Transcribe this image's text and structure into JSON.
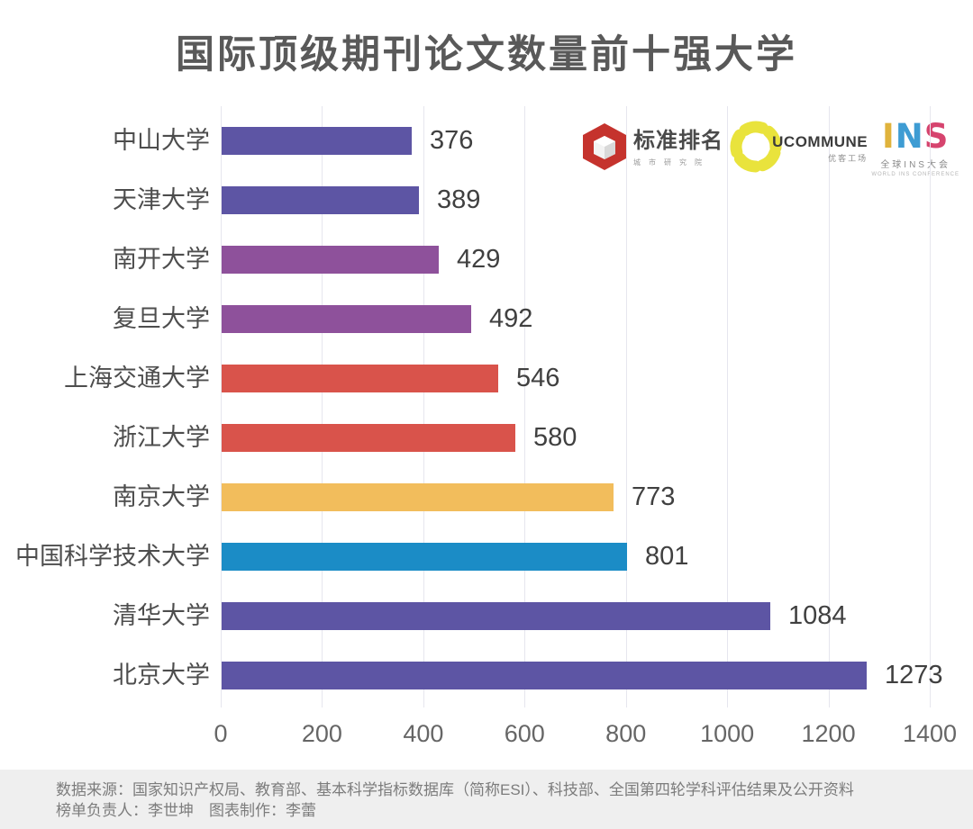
{
  "title": "国际顶级期刊论文数量前十强大学",
  "chart_data": {
    "type": "bar",
    "orientation": "horizontal",
    "title": "国际顶级期刊论文数量前十强大学",
    "categories": [
      "中山大学",
      "天津大学",
      "南开大学",
      "复旦大学",
      "上海交通大学",
      "浙江大学",
      "南京大学",
      "中国科学技术大学",
      "清华大学",
      "北京大学"
    ],
    "values": [
      376,
      389,
      429,
      492,
      546,
      580,
      773,
      801,
      1084,
      1273
    ],
    "bar_colors": [
      "#5D55A4",
      "#5D55A4",
      "#8E519B",
      "#8E519B",
      "#D9534B",
      "#D9534B",
      "#F2BD5C",
      "#1B8CC6",
      "#5D55A4",
      "#5D55A4"
    ],
    "xlim": [
      0,
      1400
    ],
    "x_ticks": [
      "0",
      "200",
      "400",
      "600",
      "800",
      "1000",
      "1200",
      "1400"
    ],
    "grid": true,
    "legend": false,
    "value_labels_shown": true
  },
  "colors": {
    "title_text": "#595959",
    "category_text": "#4d4d4d",
    "value_text": "#404040",
    "tick_text": "#666666",
    "gridline": "#e6e6ee",
    "footer_bg": "#efefef",
    "footer_text": "#7c7c7c"
  },
  "logos": [
    {
      "name": "标准排名",
      "subtext": "城市研究院",
      "accent": "#c5332d"
    },
    {
      "name": "UCOMMUNE",
      "subtext": "优客工场",
      "accent": "#e9e33c"
    },
    {
      "name": "INS",
      "letters": [
        {
          "ch": "I",
          "color": "#e0b33c"
        },
        {
          "ch": "N",
          "color": "#3e9cd3"
        },
        {
          "ch": "S",
          "color": "#d6446e"
        }
      ],
      "subtext": "全球INS大会",
      "subtext2": "WORLD INS CONFERENCE"
    }
  ],
  "footer": {
    "line1": "数据来源：国家知识产权局、教育部、基本科学指标数据库（简称ESI）、科技部、全国第四轮学科评估结果及公开资料",
    "line2": "榜单负责人：李世坤　图表制作：李蕾"
  }
}
